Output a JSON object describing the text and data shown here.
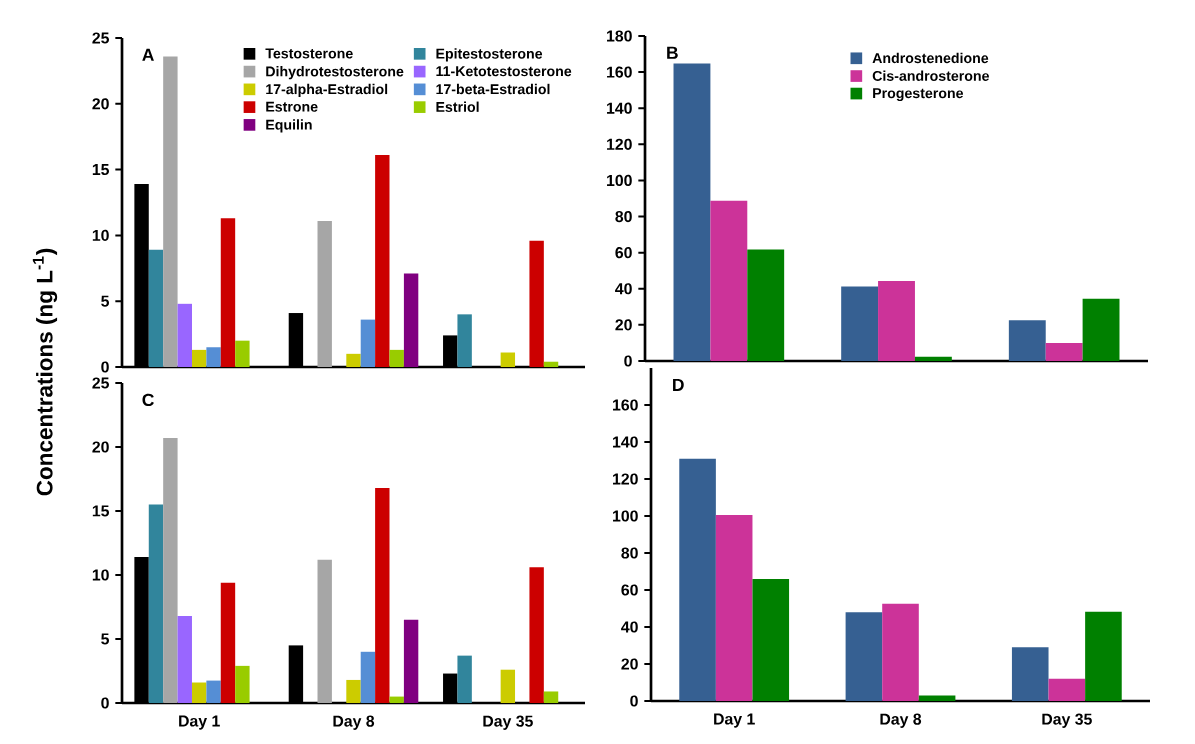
{
  "chart_data": [
    {
      "type": "bar",
      "ylabel": "Concentrations (ng L$^{-1}$)",
      "annotations": [
        "A"
      ],
      "categories": [
        null,
        null,
        null
      ],
      "ylim": [
        0,
        25
      ],
      "yticks": [
        0,
        5,
        10,
        15,
        20,
        25
      ],
      "legend": "top right",
      "series": [
        {
          "name": "Testosterone",
          "color": "#000000",
          "values": [
            13.9,
            4.1,
            2.4
          ]
        },
        {
          "name": "Epitestosterone",
          "color": "#31859c",
          "values": [
            8.9,
            null,
            4.0
          ]
        },
        {
          "name": "Dihydrotestosterone",
          "color": "#a6a6a6",
          "values": [
            23.6,
            11.1,
            null
          ]
        },
        {
          "name": "11-Ketotestosterone",
          "color": "#9966ff",
          "values": [
            4.8,
            null,
            null
          ]
        },
        {
          "name": "17-alpha-Estradiol",
          "color": "#cccc00",
          "values": [
            1.3,
            1.0,
            1.1
          ]
        },
        {
          "name": "17-beta-Estradiol",
          "color": "#558ed5",
          "values": [
            1.5,
            3.6,
            null
          ]
        },
        {
          "name": "Estrone",
          "color": "#cc0000",
          "values": [
            11.3,
            16.1,
            9.6
          ]
        },
        {
          "name": "Estriol",
          "color": "#99cc00",
          "values": [
            2.0,
            1.3,
            0.4
          ]
        },
        {
          "name": "Equilin",
          "color": "#800080",
          "values": [
            null,
            7.1,
            null
          ]
        }
      ]
    },
    {
      "type": "bar",
      "annotations": [
        "B"
      ],
      "categories": [
        null,
        null,
        null
      ],
      "ylim": [
        0,
        180
      ],
      "yticks": [
        0,
        20,
        40,
        60,
        80,
        100,
        120,
        140,
        160,
        180
      ],
      "legend": "top",
      "series": [
        {
          "name": "Androstenedione",
          "color": "#366092",
          "values": [
            164.7,
            41.3,
            22.6
          ]
        },
        {
          "name": "Cis-androsterone",
          "color": "#cc3399",
          "values": [
            88.8,
            44.3,
            10.0
          ]
        },
        {
          "name": "Progesterone",
          "color": "#008000",
          "values": [
            61.8,
            2.3,
            34.5
          ]
        }
      ]
    },
    {
      "type": "bar",
      "annotations": [
        "C"
      ],
      "categories": [
        "Day 1",
        "Day 8",
        "Day 35"
      ],
      "ylim": [
        0,
        25
      ],
      "yticks": [
        0,
        5,
        10,
        15,
        20,
        25
      ],
      "series": [
        {
          "color": "#000000",
          "values": [
            11.4,
            4.5,
            2.3
          ]
        },
        {
          "color": "#31859c",
          "values": [
            15.5,
            null,
            3.7
          ]
        },
        {
          "color": "#a6a6a6",
          "values": [
            20.7,
            11.2,
            null
          ]
        },
        {
          "color": "#9966ff",
          "values": [
            6.8,
            null,
            null
          ]
        },
        {
          "color": "#cccc00",
          "values": [
            1.6,
            1.8,
            2.6
          ]
        },
        {
          "color": "#558ed5",
          "values": [
            1.75,
            4.0,
            null
          ]
        },
        {
          "color": "#cc0000",
          "values": [
            9.4,
            16.8,
            10.6
          ]
        },
        {
          "color": "#99cc00",
          "values": [
            2.9,
            0.5,
            0.9
          ]
        },
        {
          "color": "#800080",
          "values": [
            null,
            6.5,
            null
          ]
        }
      ]
    },
    {
      "type": "bar",
      "annotations": [
        "D"
      ],
      "categories": [
        "Day 1",
        "Day 8",
        "Day 35"
      ],
      "ylim": [
        0,
        180
      ],
      "yticks": [
        0,
        20,
        40,
        60,
        80,
        100,
        120,
        140,
        160
      ],
      "series": [
        {
          "color": "#366092",
          "values": [
            131,
            47.9,
            29
          ]
        },
        {
          "color": "#cc3399",
          "values": [
            100.5,
            52.6,
            12
          ]
        },
        {
          "color": "#008000",
          "values": [
            65.9,
            2.9,
            48.3
          ]
        }
      ]
    }
  ]
}
